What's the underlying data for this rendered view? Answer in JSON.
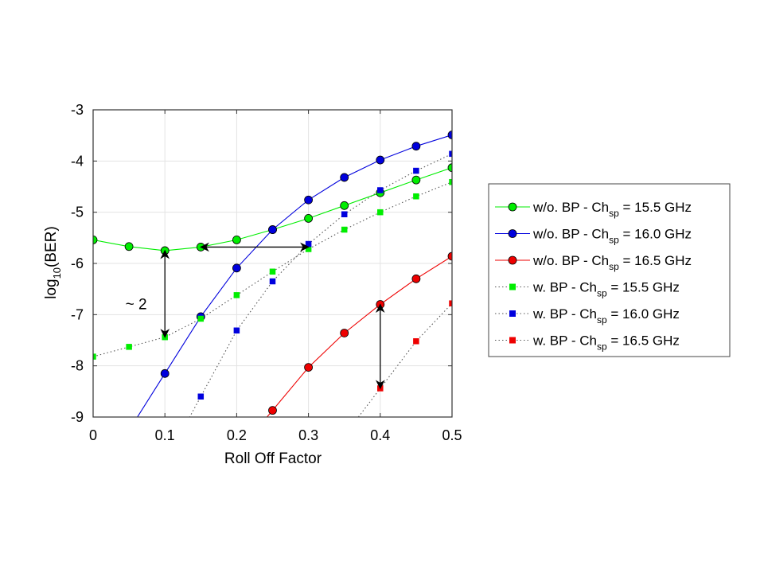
{
  "chart_data": {
    "type": "line",
    "title": "",
    "xlabel": "Roll Off Factor",
    "ylabel_parts": {
      "base": "log",
      "sub": "10",
      "rest": "(BER)"
    },
    "xlim": [
      0,
      0.5
    ],
    "ylim": [
      -9,
      -3
    ],
    "xticks": [
      0,
      0.1,
      0.2,
      0.3,
      0.4,
      0.5
    ],
    "xtick_labels": [
      "0",
      "0.1",
      "0.2",
      "0.3",
      "0.4",
      "0.5"
    ],
    "yticks": [
      -3,
      -4,
      -5,
      -6,
      -7,
      -8,
      -9
    ],
    "ytick_labels": [
      "-3",
      "-4",
      "-5",
      "-6",
      "-7",
      "-8",
      "-9"
    ],
    "grid": true,
    "legend_position": "outside-right",
    "series": [
      {
        "name_parts": {
          "pre": "w/o. BP - Ch",
          "sub": "sp",
          "post": " = 15.5 GHz"
        },
        "color": "#00ee00",
        "marker": "circle",
        "line": "solid",
        "x": [
          0,
          0.05,
          0.1,
          0.15,
          0.2,
          0.25,
          0.3,
          0.35,
          0.4,
          0.45,
          0.5
        ],
        "y": [
          -5.54,
          -5.67,
          -5.75,
          -5.68,
          -5.54,
          -5.34,
          -5.12,
          -4.87,
          -4.62,
          -4.37,
          -4.13
        ]
      },
      {
        "name_parts": {
          "pre": "w/o. BP - Ch",
          "sub": "sp",
          "post": " = 16.0 GHz"
        },
        "color": "#0000dd",
        "marker": "circle",
        "line": "solid",
        "x": [
          0.1,
          0.15,
          0.2,
          0.25,
          0.3,
          0.35,
          0.4,
          0.45,
          0.5
        ],
        "y": [
          -8.15,
          -7.04,
          -6.09,
          -5.34,
          -4.76,
          -4.32,
          -3.98,
          -3.71,
          -3.49
        ]
      },
      {
        "name_parts": {
          "pre": "w/o. BP - Ch",
          "sub": "sp",
          "post": " = 16.5 GHz"
        },
        "color": "#ee0000",
        "marker": "circle",
        "line": "solid",
        "x": [
          0.25,
          0.3,
          0.35,
          0.4,
          0.45,
          0.5
        ],
        "y": [
          -8.87,
          -8.03,
          -7.36,
          -6.8,
          -6.3,
          -5.86
        ]
      },
      {
        "name_parts": {
          "pre": "w. BP - Ch",
          "sub": "sp",
          "post": " = 15.5 GHz"
        },
        "color": "#00ee00",
        "marker": "square",
        "line": "dotted",
        "x": [
          0,
          0.05,
          0.1,
          0.15,
          0.2,
          0.25,
          0.3,
          0.35,
          0.4,
          0.45,
          0.5
        ],
        "y": [
          -7.82,
          -7.63,
          -7.44,
          -7.08,
          -6.62,
          -6.16,
          -5.72,
          -5.34,
          -5.0,
          -4.69,
          -4.41
        ]
      },
      {
        "name_parts": {
          "pre": "w. BP - Ch",
          "sub": "sp",
          "post": " = 16.0 GHz"
        },
        "color": "#0000dd",
        "marker": "square",
        "line": "dotted",
        "x": [
          0.15,
          0.2,
          0.25,
          0.3,
          0.35,
          0.4,
          0.45,
          0.5
        ],
        "y": [
          -8.6,
          -7.31,
          -6.35,
          -5.62,
          -5.04,
          -4.57,
          -4.19,
          -3.86
        ]
      },
      {
        "name_parts": {
          "pre": "w. BP - Ch",
          "sub": "sp",
          "post": " = 16.5 GHz"
        },
        "color": "#ee0000",
        "marker": "square",
        "line": "dotted",
        "x": [
          0.4,
          0.45,
          0.5
        ],
        "y": [
          -8.44,
          -7.52,
          -6.78
        ]
      }
    ],
    "annotations": [
      {
        "text": "~ 2",
        "x": 0.045,
        "y": -6.8
      }
    ],
    "arrows": [
      {
        "kind": "vertical",
        "x": 0.1,
        "y1": -5.75,
        "y2": -7.44
      },
      {
        "kind": "horizontal",
        "y": -5.68,
        "x1": 0.15,
        "x2": 0.3
      },
      {
        "kind": "vertical",
        "x": 0.4,
        "y1": -6.8,
        "y2": -8.44
      }
    ]
  }
}
